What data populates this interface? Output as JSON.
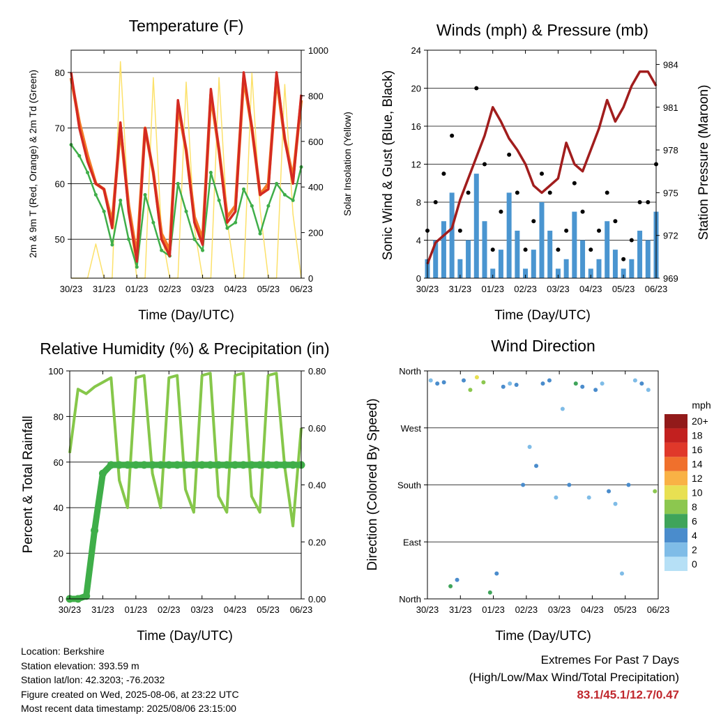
{
  "colors": {
    "temp2m": "#d42a22",
    "temp9m": "#f47a26",
    "dewpoint": "#3fae49",
    "solar": "#fce16a",
    "sonic_wind": "#4a95d0",
    "gust": "#000000",
    "pressure": "#a11d1d",
    "rh": "#86c74a",
    "precip": "#3fae49"
  },
  "charts": {
    "temperature": {
      "title": "Temperature (F)",
      "ylabel_left": "2m & 9m T (Red, Orange) & 2m Td (Green)",
      "ylabel_right": "Solar Insolation (Yellow)",
      "xlabel": "Time (Day/UTC)",
      "left_ticks": [
        "50",
        "60",
        "70",
        "80"
      ],
      "right_ticks": [
        "0",
        "200",
        "400",
        "600",
        "800",
        "1000"
      ]
    },
    "winds": {
      "title": "Winds (mph) & Pressure (mb)",
      "ylabel_left": "Sonic Wind & Gust (Blue, Black)",
      "ylabel_right": "Station Pressure (Maroon)",
      "xlabel": "Time (Day/UTC)",
      "left_ticks": [
        "0",
        "4",
        "8",
        "12",
        "16",
        "20",
        "24"
      ],
      "right_ticks": [
        "969",
        "972",
        "975",
        "978",
        "981",
        "984"
      ]
    },
    "humidity": {
      "title": "Relative Humidity (%) & Precipitation (in)",
      "ylabel_left": "Percent & Total Rainfall",
      "xlabel": "Time (Day/UTC)",
      "left_ticks": [
        "0",
        "20",
        "40",
        "60",
        "80",
        "100"
      ],
      "right_ticks": [
        "0.00",
        "0.20",
        "0.40",
        "0.60",
        "0.80"
      ]
    },
    "direction": {
      "title": "Wind Direction",
      "ylabel_left": "Direction (Colored By Speed)",
      "xlabel": "Time (Day/UTC)",
      "left_ticks": [
        "North",
        "East",
        "South",
        "West",
        "North"
      ],
      "legend_title": "mph",
      "legend_labels": [
        "0",
        "2",
        "4",
        "6",
        "8",
        "10",
        "12",
        "14",
        "16",
        "18",
        "20+"
      ],
      "legend_colors": [
        "#b6e0f6",
        "#7fbce7",
        "#4a8ccc",
        "#3fa45a",
        "#8cc74f",
        "#e8e052",
        "#f9b245",
        "#f0702c",
        "#e0382a",
        "#c2201f",
        "#921a1a"
      ]
    }
  },
  "x_tick_labels": [
    "30/23",
    "31/23",
    "01/23",
    "02/23",
    "03/23",
    "04/23",
    "05/23",
    "06/23"
  ],
  "chart_data": [
    {
      "type": "line",
      "title": "Temperature (F)",
      "xlabel": "Time (Day/UTC)",
      "ylabel": "2m & 9m T (Red, Orange) & 2m Td (Green)",
      "y2label": "Solar Insolation (Yellow)",
      "ylim": [
        43,
        84
      ],
      "y2lim": [
        0,
        1000
      ],
      "x": [
        0,
        0.25,
        0.5,
        0.75,
        1,
        1.25,
        1.5,
        1.75,
        2,
        2.25,
        2.5,
        2.75,
        3,
        3.25,
        3.5,
        3.75,
        4,
        4.25,
        4.5,
        4.75,
        5,
        5.25,
        5.5,
        5.75,
        6,
        6.25,
        6.5,
        6.75,
        7
      ],
      "series": [
        {
          "name": "2m T",
          "values": [
            80,
            70,
            64,
            60,
            59,
            52,
            71,
            55,
            46,
            70,
            62,
            50,
            47,
            75,
            66,
            53,
            49,
            77,
            66,
            53,
            55,
            80,
            70,
            58,
            59,
            80,
            68,
            60,
            76
          ]
        },
        {
          "name": "9m T",
          "values": [
            79,
            71,
            65,
            60,
            59,
            53,
            70,
            56,
            47,
            70,
            62,
            51,
            48,
            74,
            66,
            54,
            50,
            76,
            66,
            54,
            56,
            79,
            70,
            58,
            60,
            79,
            68,
            61,
            75
          ]
        },
        {
          "name": "2m Td",
          "values": [
            67,
            65,
            62,
            58,
            55,
            49,
            57,
            50,
            45,
            58,
            53,
            48,
            47,
            60,
            55,
            50,
            48,
            62,
            57,
            52,
            53,
            59,
            56,
            51,
            56,
            60,
            58,
            57,
            63
          ]
        },
        {
          "name": "Solar Insolation",
          "values": [
            0,
            0,
            0,
            150,
            0,
            0,
            950,
            300,
            0,
            0,
            880,
            200,
            0,
            0,
            860,
            220,
            0,
            0,
            880,
            250,
            0,
            0,
            900,
            300,
            0,
            0,
            850,
            280,
            0
          ]
        }
      ]
    },
    {
      "type": "scatter",
      "title": "Winds (mph) & Pressure (mb)",
      "xlabel": "Time (Day/UTC)",
      "ylabel": "Sonic Wind & Gust (Blue, Black)",
      "y2label": "Station Pressure (Maroon)",
      "ylim": [
        0,
        24
      ],
      "y2lim": [
        969,
        985
      ],
      "x": [
        0,
        0.25,
        0.5,
        0.75,
        1,
        1.25,
        1.5,
        1.75,
        2,
        2.25,
        2.5,
        2.75,
        3,
        3.25,
        3.5,
        3.75,
        4,
        4.25,
        4.5,
        4.75,
        5,
        5.25,
        5.5,
        5.75,
        6,
        6.25,
        6.5,
        6.75,
        7
      ],
      "series": [
        {
          "name": "Sonic Wind",
          "values": [
            2,
            4,
            6,
            9,
            2,
            4,
            11,
            6,
            1,
            3,
            9,
            5,
            1,
            3,
            8,
            5,
            1,
            2,
            7,
            4,
            1,
            2,
            6,
            3,
            1,
            2,
            5,
            4,
            7
          ]
        },
        {
          "name": "Gust",
          "values": [
            5,
            8,
            11,
            15,
            5,
            9,
            20,
            12,
            3,
            7,
            13,
            9,
            3,
            6,
            11,
            9,
            3,
            5,
            10,
            7,
            3,
            5,
            9,
            6,
            2,
            4,
            8,
            8,
            12
          ]
        },
        {
          "name": "Station Pressure",
          "values": [
            970.0,
            971.5,
            972.0,
            972.5,
            974.5,
            976.0,
            977.5,
            979.0,
            981.0,
            980.0,
            978.8,
            978.0,
            977.0,
            975.5,
            975.0,
            975.5,
            976.0,
            978.5,
            977.0,
            976.5,
            978.0,
            979.5,
            981.5,
            980.0,
            981.0,
            982.5,
            983.5,
            983.5,
            982.5
          ]
        }
      ]
    },
    {
      "type": "line",
      "title": "Relative Humidity (%) & Precipitation (in)",
      "xlabel": "Time (Day/UTC)",
      "ylabel": "Percent & Total Rainfall",
      "ylim": [
        0,
        100
      ],
      "y2lim": [
        0,
        0.8
      ],
      "x": [
        0,
        0.25,
        0.5,
        0.75,
        1,
        1.25,
        1.5,
        1.75,
        2,
        2.25,
        2.5,
        2.75,
        3,
        3.25,
        3.5,
        3.75,
        4,
        4.25,
        4.5,
        4.75,
        5,
        5.25,
        5.5,
        5.75,
        6,
        6.25,
        6.5,
        6.75,
        7
      ],
      "series": [
        {
          "name": "Relative Humidity",
          "values": [
            64,
            92,
            90,
            93,
            95,
            97,
            52,
            40,
            97,
            98,
            55,
            40,
            97,
            98,
            48,
            38,
            98,
            99,
            45,
            38,
            98,
            99,
            45,
            38,
            98,
            99,
            58,
            32,
            75
          ]
        },
        {
          "name": "Total Rainfall",
          "values": [
            0,
            0,
            0.01,
            0.24,
            0.44,
            0.47,
            0.47,
            0.47,
            0.47,
            0.47,
            0.47,
            0.47,
            0.47,
            0.47,
            0.47,
            0.47,
            0.47,
            0.47,
            0.47,
            0.47,
            0.47,
            0.47,
            0.47,
            0.47,
            0.47,
            0.47,
            0.47,
            0.47,
            0.47
          ]
        }
      ]
    },
    {
      "type": "scatter",
      "title": "Wind Direction",
      "xlabel": "Time (Day/UTC)",
      "ylabel": "Direction (Colored By Speed)",
      "y_categories": [
        "North",
        "East",
        "South",
        "West",
        "North"
      ],
      "ylim": [
        0,
        360
      ],
      "x": [
        0.1,
        0.3,
        0.5,
        0.7,
        0.9,
        1.1,
        1.3,
        1.5,
        1.7,
        1.9,
        2.1,
        2.3,
        2.5,
        2.7,
        2.9,
        3.1,
        3.3,
        3.5,
        3.7,
        3.9,
        4.1,
        4.3,
        4.5,
        4.7,
        4.9,
        5.1,
        5.3,
        5.5,
        5.7,
        5.9,
        6.1,
        6.3,
        6.5,
        6.7,
        6.9
      ],
      "values": [
        345,
        340,
        342,
        20,
        30,
        345,
        330,
        350,
        342,
        10,
        40,
        335,
        340,
        338,
        180,
        240,
        210,
        340,
        345,
        160,
        300,
        180,
        340,
        335,
        160,
        330,
        340,
        170,
        150,
        40,
        180,
        345,
        340,
        330,
        170
      ],
      "speeds": [
        3,
        4,
        5,
        6,
        5,
        4,
        8,
        10,
        9,
        6,
        5,
        4,
        3,
        5,
        4,
        3,
        5,
        4,
        4,
        3,
        2,
        4,
        7,
        5,
        3,
        4,
        3,
        4,
        3,
        2,
        4,
        3,
        4,
        3,
        8
      ]
    }
  ],
  "info": {
    "location": "Location: Berkshire",
    "elevation": "Station elevation: 393.59 m",
    "latlon": "Station lat/lon: 42.3203; -76.2032",
    "created": "Figure created on Wed, 2025-08-06, at 23:22 UTC",
    "recent": "Most recent data timestamp: 2025/08/06 23:15:00"
  },
  "extremes": {
    "title": "Extremes For Past 7 Days",
    "subtitle": "(High/Low/Max Wind/Total Precipitation)",
    "values": "83.1/45.1/12.7/0.47"
  }
}
